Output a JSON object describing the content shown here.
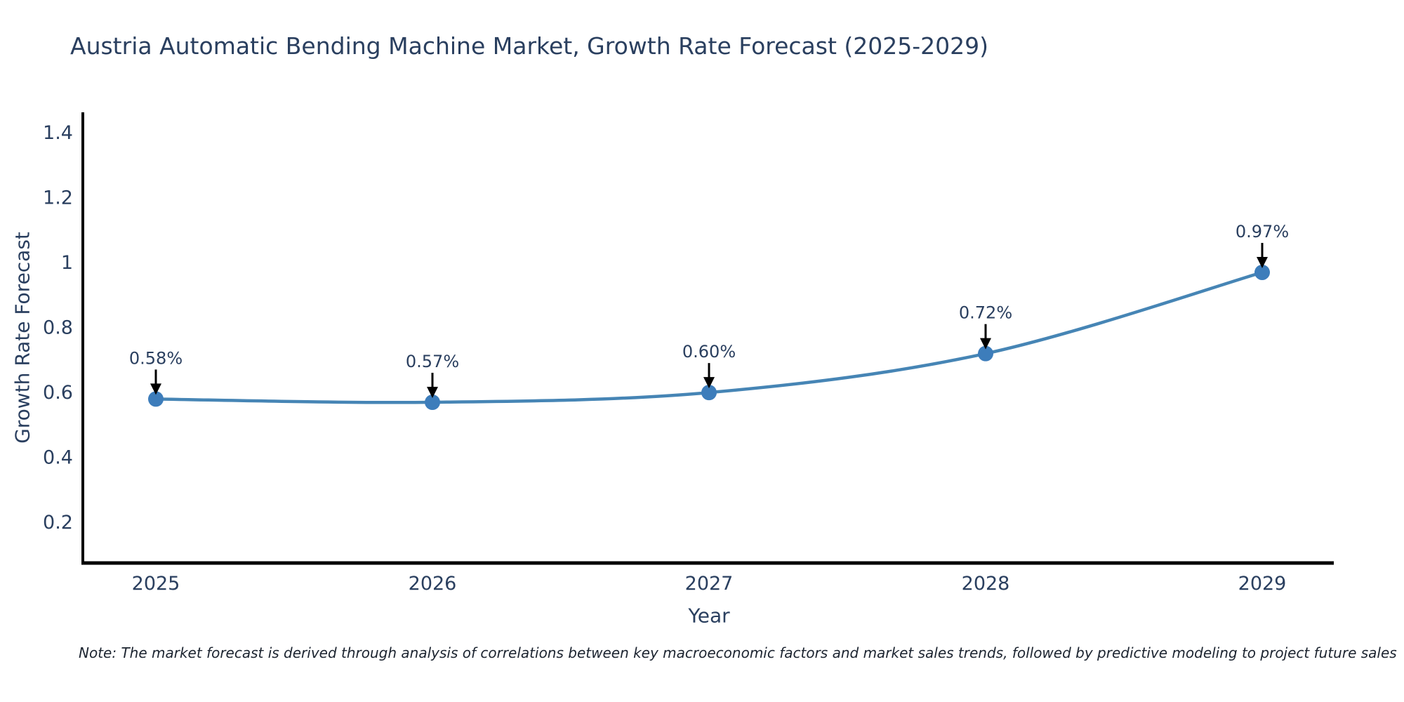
{
  "title": "Austria Automatic Bending Machine Market, Growth Rate Forecast (2025-2029)",
  "note": "Note: The market forecast is derived through analysis of correlations between key macroeconomic factors and market sales trends, followed by predictive modeling to project future sales",
  "chart_data": {
    "type": "line",
    "title": "Austria Automatic Bending Machine Market, Growth Rate Forecast (2025-2029)",
    "x": [
      "2025",
      "2026",
      "2027",
      "2028",
      "2029"
    ],
    "values": [
      0.58,
      0.57,
      0.6,
      0.72,
      0.97
    ],
    "point_labels": [
      "0.58%",
      "0.57%",
      "0.60%",
      "0.72%",
      "0.97%"
    ],
    "xlabel": "Year",
    "ylabel": "Growth Rate Forecast",
    "yticks": [
      0.2,
      0.4,
      0.6,
      0.8,
      1,
      1.2,
      1.4
    ],
    "ylim": [
      0.075,
      1.463
    ],
    "grid": false,
    "legend_position": "none",
    "line_color": "#4685b5",
    "marker_color": "#3d7dbb",
    "axis_color": "#000000",
    "arrow_color": "#000000",
    "text_color": "#2a3f5f"
  }
}
